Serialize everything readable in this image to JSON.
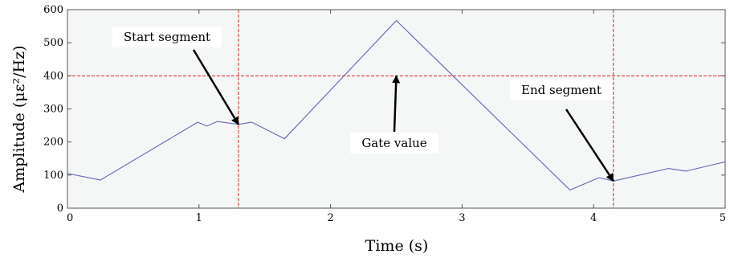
{
  "chart_data": {
    "type": "line",
    "title": "",
    "xlabel": "Time (s)",
    "ylabel": "Amplitude  (με²/Hz)",
    "xlim": [
      0,
      5
    ],
    "ylim": [
      0,
      600
    ],
    "x_ticks": [
      "0",
      "1",
      "2",
      "3",
      "4",
      "5"
    ],
    "y_ticks": [
      "0",
      "100",
      "200",
      "300",
      "400",
      "500",
      "600"
    ],
    "grid": false,
    "background_color": "#f5f7f6",
    "series": [
      {
        "color": "#6a6fb8",
        "x": [
          0,
          0.25,
          0.99,
          1.06,
          1.14,
          1.3,
          1.4,
          1.65,
          2.5,
          3.82,
          4.04,
          4.15,
          4.57,
          4.7,
          5
        ],
        "y": [
          105,
          85,
          260,
          248,
          262,
          253,
          260,
          210,
          567,
          55,
          92,
          82,
          120,
          112,
          140
        ]
      }
    ],
    "reference_lines": [
      {
        "orientation": "vertical",
        "x": 1.3,
        "color": "#e02020",
        "style": "dashed"
      },
      {
        "orientation": "vertical",
        "x": 4.15,
        "color": "#e02020",
        "style": "dashed"
      },
      {
        "orientation": "horizontal",
        "y": 400,
        "color": "#e02020",
        "style": "dashed"
      }
    ],
    "annotations": [
      {
        "text": "Start segment",
        "anchor_x": 1.3,
        "anchor_y": 253
      },
      {
        "text": "Gate value",
        "anchor_x": 2.5,
        "anchor_y": 400
      },
      {
        "text": "End segment",
        "anchor_x": 4.15,
        "anchor_y": 82
      }
    ]
  }
}
